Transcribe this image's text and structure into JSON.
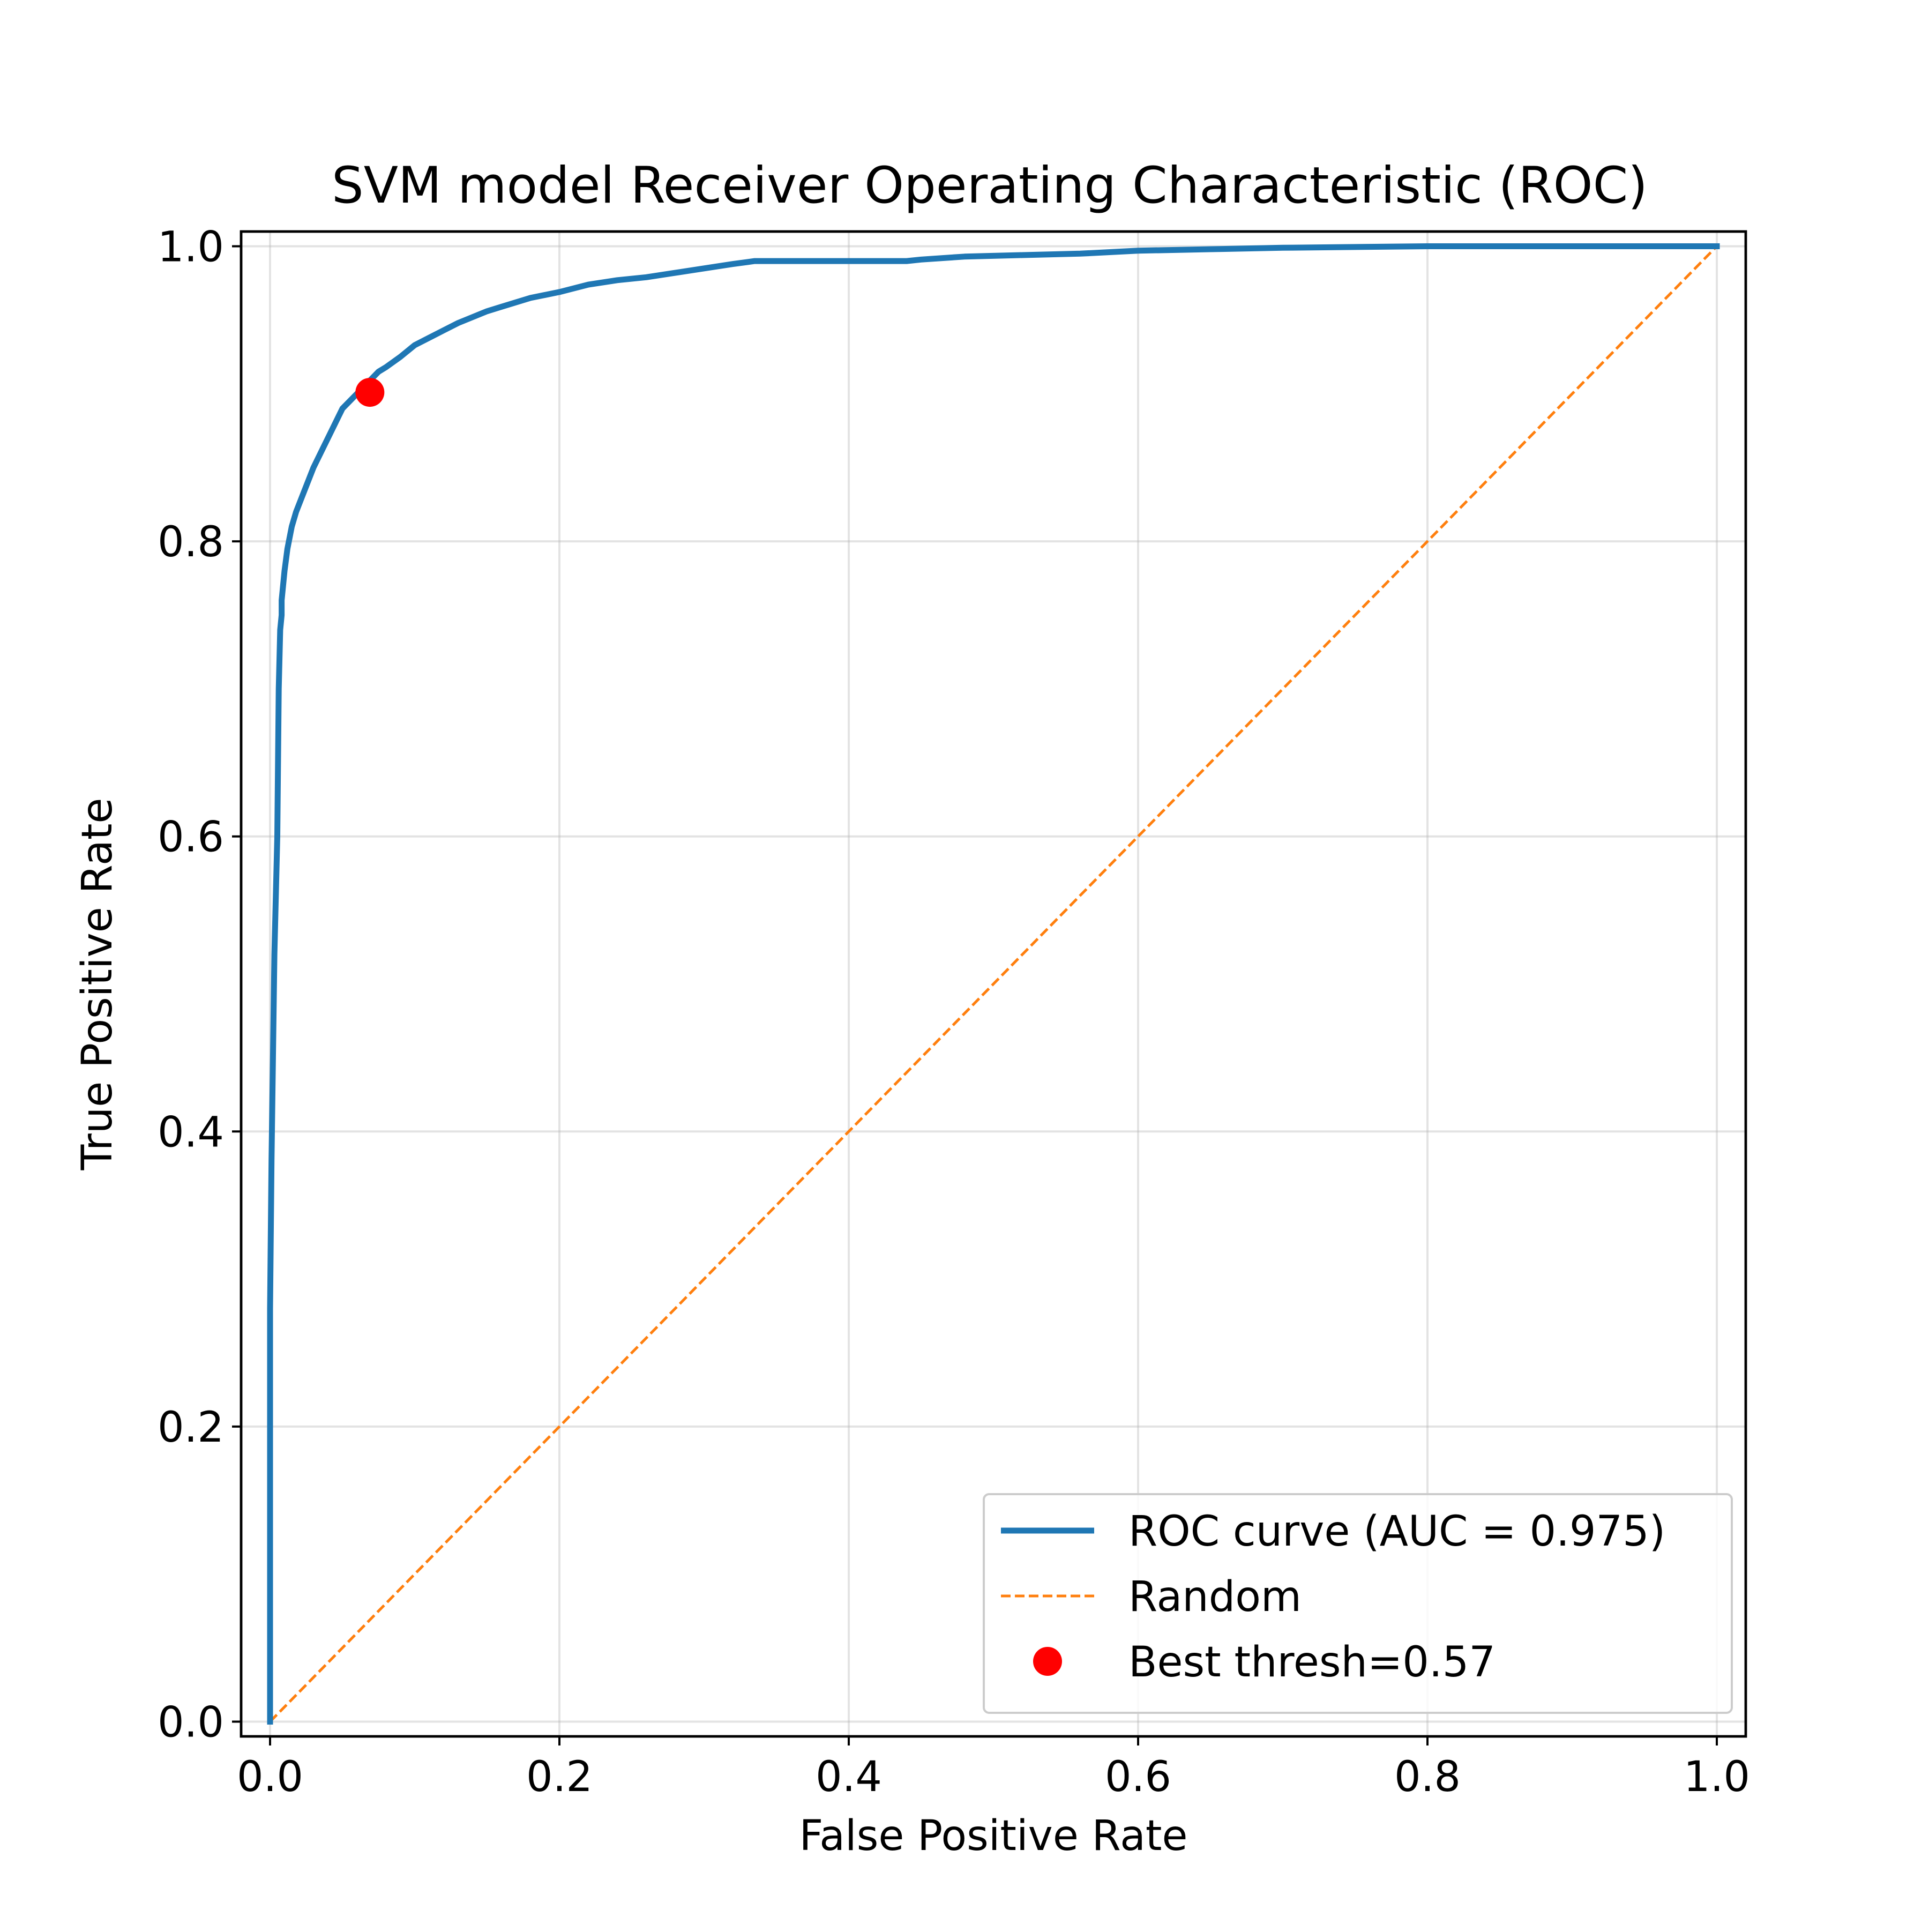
{
  "chart_data": {
    "type": "line",
    "title": "SVM model Receiver Operating Characteristic (ROC)",
    "xlabel": "False Positive Rate",
    "ylabel": "True Positive Rate",
    "xlim": [
      -0.02,
      1.02
    ],
    "ylim": [
      -0.01,
      1.01
    ],
    "xticks": [
      0.0,
      0.2,
      0.4,
      0.6,
      0.8,
      1.0
    ],
    "yticks": [
      0.0,
      0.2,
      0.4,
      0.6,
      0.8,
      1.0
    ],
    "xtick_labels": [
      "0.0",
      "0.2",
      "0.4",
      "0.6",
      "0.8",
      "1.0"
    ],
    "ytick_labels": [
      "0.0",
      "0.2",
      "0.4",
      "0.6",
      "0.8",
      "1.0"
    ],
    "grid": true,
    "legend_position": "lower right",
    "series": [
      {
        "name": "ROC curve (AUC = 0.975)",
        "style": "solid",
        "color": "#1f77b4",
        "x": [
          0.0,
          0.0,
          0.001,
          0.002,
          0.003,
          0.004,
          0.005,
          0.006,
          0.007,
          0.008,
          0.008,
          0.01,
          0.012,
          0.015,
          0.018,
          0.022,
          0.026,
          0.03,
          0.035,
          0.04,
          0.045,
          0.05,
          0.055,
          0.06,
          0.065,
          0.07,
          0.075,
          0.08,
          0.09,
          0.1,
          0.11,
          0.12,
          0.13,
          0.14,
          0.15,
          0.16,
          0.17,
          0.18,
          0.2,
          0.22,
          0.24,
          0.26,
          0.28,
          0.3,
          0.32,
          0.335,
          0.36,
          0.4,
          0.44,
          0.45,
          0.48,
          0.52,
          0.56,
          0.6,
          0.65,
          0.7,
          0.8,
          0.9,
          1.0
        ],
        "y": [
          0.0,
          0.28,
          0.38,
          0.45,
          0.52,
          0.56,
          0.6,
          0.7,
          0.74,
          0.75,
          0.76,
          0.78,
          0.795,
          0.81,
          0.82,
          0.83,
          0.84,
          0.85,
          0.86,
          0.87,
          0.88,
          0.89,
          0.895,
          0.9,
          0.905,
          0.91,
          0.915,
          0.918,
          0.925,
          0.933,
          0.938,
          0.943,
          0.948,
          0.952,
          0.956,
          0.959,
          0.962,
          0.965,
          0.969,
          0.974,
          0.977,
          0.979,
          0.982,
          0.985,
          0.988,
          0.99,
          0.99,
          0.99,
          0.99,
          0.991,
          0.993,
          0.994,
          0.995,
          0.997,
          0.998,
          0.999,
          1.0,
          1.0,
          1.0
        ]
      },
      {
        "name": "Random",
        "style": "dashed",
        "color": "#ff7f0e",
        "x": [
          0.0,
          1.0
        ],
        "y": [
          0.0,
          1.0
        ]
      }
    ],
    "points": [
      {
        "name": "Best thresh=0.57",
        "x": 0.069,
        "y": 0.901,
        "color": "#ff0000"
      }
    ]
  }
}
